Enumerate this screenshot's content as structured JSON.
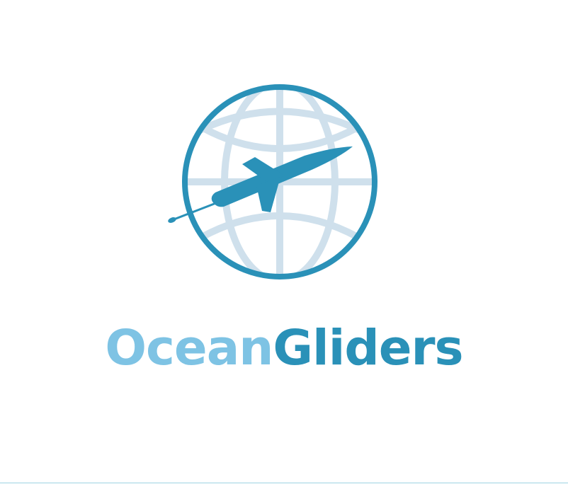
{
  "logo": {
    "wordmark_part1": "Ocean",
    "wordmark_part2": "Gliders",
    "icon": "globe-glider-icon"
  },
  "colors": {
    "ring": "#2a91b8",
    "grid": "#cfe0ec",
    "glider": "#2a91b8",
    "ocean_text": "#7ec3e4",
    "gliders_text": "#2a91b8",
    "bottom_rule": "#9fd3e3"
  }
}
